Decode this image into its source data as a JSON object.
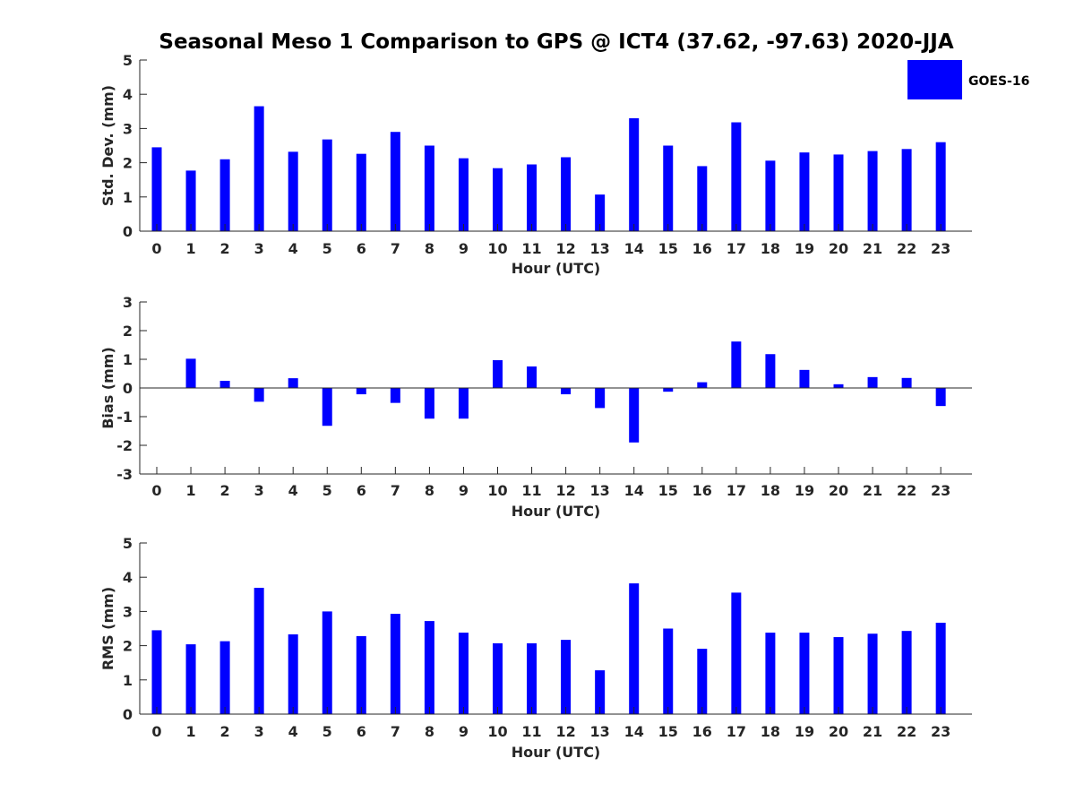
{
  "figure": {
    "title": "Seasonal Meso 1 Comparison to GPS @ ICT4 (37.62, -97.63) 2020-JJA",
    "legend": {
      "label": "GOES-16",
      "color": "#0000ff"
    }
  },
  "chart_data": [
    {
      "type": "bar",
      "name": "std-dev",
      "categories": [
        "0",
        "1",
        "2",
        "3",
        "4",
        "5",
        "6",
        "7",
        "8",
        "9",
        "10",
        "11",
        "12",
        "13",
        "14",
        "15",
        "16",
        "17",
        "18",
        "19",
        "20",
        "21",
        "22",
        "23"
      ],
      "series": [
        {
          "name": "GOES-16",
          "values": [
            2.45,
            1.77,
            2.1,
            3.65,
            2.32,
            2.68,
            2.26,
            2.9,
            2.5,
            2.13,
            1.84,
            1.95,
            2.16,
            1.07,
            3.3,
            2.5,
            1.9,
            3.18,
            2.06,
            2.3,
            2.24,
            2.34,
            2.4,
            2.6
          ]
        }
      ],
      "xlabel": "Hour (UTC)",
      "ylabel": "Std. Dev. (mm)",
      "ylim": [
        0,
        5
      ],
      "yticks": [
        "0",
        "1",
        "2",
        "3",
        "4",
        "5"
      ],
      "legend": "top-right"
    },
    {
      "type": "bar",
      "name": "bias",
      "categories": [
        "0",
        "1",
        "2",
        "3",
        "4",
        "5",
        "6",
        "7",
        "8",
        "9",
        "10",
        "11",
        "12",
        "13",
        "14",
        "15",
        "16",
        "17",
        "18",
        "19",
        "20",
        "21",
        "22",
        "23"
      ],
      "series": [
        {
          "name": "GOES-16",
          "values": [
            0.0,
            1.02,
            0.25,
            -0.48,
            0.34,
            -1.32,
            -0.22,
            -0.52,
            -1.07,
            -1.07,
            0.97,
            0.75,
            -0.22,
            -0.7,
            -1.9,
            -0.13,
            0.2,
            1.62,
            1.18,
            0.63,
            0.13,
            0.38,
            0.35,
            -0.63
          ]
        }
      ],
      "xlabel": "Hour (UTC)",
      "ylabel": "Bias (mm)",
      "ylim": [
        -3,
        3
      ],
      "yticks": [
        "-3",
        "-2",
        "-1",
        "0",
        "1",
        "2",
        "3"
      ]
    },
    {
      "type": "bar",
      "name": "rms",
      "categories": [
        "0",
        "1",
        "2",
        "3",
        "4",
        "5",
        "6",
        "7",
        "8",
        "9",
        "10",
        "11",
        "12",
        "13",
        "14",
        "15",
        "16",
        "17",
        "18",
        "19",
        "20",
        "21",
        "22",
        "23"
      ],
      "series": [
        {
          "name": "GOES-16",
          "values": [
            2.45,
            2.04,
            2.13,
            3.69,
            2.33,
            3.0,
            2.28,
            2.93,
            2.72,
            2.38,
            2.07,
            2.07,
            2.17,
            1.28,
            3.82,
            2.5,
            1.91,
            3.55,
            2.38,
            2.38,
            2.25,
            2.35,
            2.43,
            2.67
          ]
        }
      ],
      "xlabel": "Hour (UTC)",
      "ylabel": "RMS (mm)",
      "ylim": [
        0,
        5
      ],
      "yticks": [
        "0",
        "1",
        "2",
        "3",
        "4",
        "5"
      ]
    }
  ]
}
